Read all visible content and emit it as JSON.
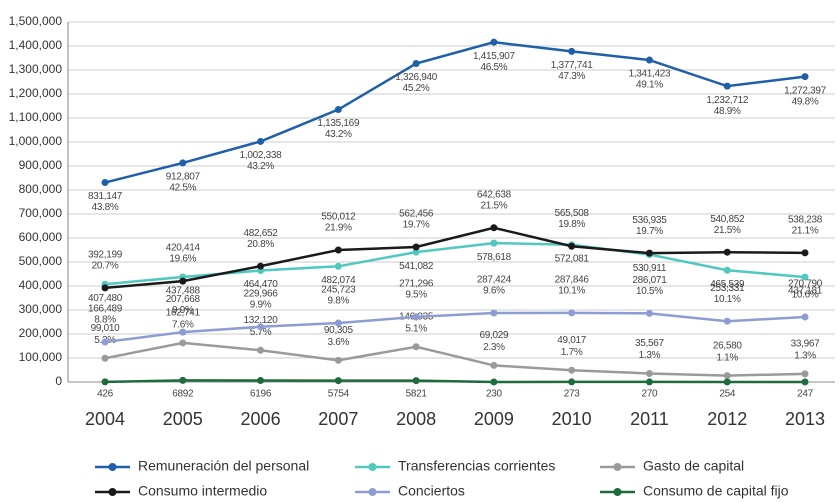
{
  "chart_data": {
    "type": "line",
    "categories": [
      "2004",
      "2005",
      "2006",
      "2007",
      "2008",
      "2009",
      "2010",
      "2011",
      "2012",
      "2013"
    ],
    "ylim": [
      0,
      1500000
    ],
    "yticks": [
      0,
      {
        "value": 100000,
        "label": "100,000"
      },
      {
        "value": 200000,
        "label": "200,000"
      },
      {
        "value": 300000,
        "label": "300,000"
      },
      {
        "value": 400000,
        "label": "400,000"
      },
      {
        "value": 500000,
        "label": "500,000"
      },
      {
        "value": 600000,
        "label": "600,000"
      },
      {
        "value": 700000,
        "label": "700,000"
      },
      {
        "value": 800000,
        "label": "800,000"
      },
      {
        "value": 900000,
        "label": "900,000"
      },
      {
        "value": 1000000,
        "label": "1,000,000"
      },
      {
        "value": 1100000,
        "label": "1,100,000"
      },
      {
        "value": 1200000,
        "label": "1,200,000"
      },
      {
        "value": 1300000,
        "label": "1,300,000"
      },
      {
        "value": 1400000,
        "label": "1,400,000"
      },
      {
        "value": 1500000,
        "label": "1,500,000"
      }
    ],
    "grid": true,
    "legend": "bottom",
    "series": [
      {
        "name": "Remuneración del personal",
        "color": "#1f5ea8",
        "values": [
          831147,
          912807,
          1002338,
          1135169,
          1326940,
          1415907,
          1377741,
          1341423,
          1232712,
          1272397
        ],
        "value_labels": [
          "831,147",
          "912,807",
          "1,002,338",
          "1,135,169",
          "1,326,940",
          "1,415,907",
          "1,377,741",
          "1,341,423",
          "1,232,712",
          "1,272,397"
        ],
        "percent_labels": [
          "43.8%",
          "42.5%",
          "43.2%",
          "43.2%",
          "45.2%",
          "46.5%",
          "47.3%",
          "49.1%",
          "48.9%",
          "49.8%"
        ]
      },
      {
        "name": "Transferencias corrientes",
        "color": "#4fc8c0",
        "values": [
          407480,
          437488,
          464470,
          482074,
          541082,
          578618,
          572081,
          530911,
          465539,
          437181
        ],
        "value_labels": [
          "407,480",
          "437,488",
          "464,470",
          "482,074",
          "541,082",
          "578,618",
          "572,081",
          "530,911",
          "465,539",
          "437,181"
        ]
      },
      {
        "name": "Gasto de capital",
        "color": "#9a9a9a",
        "values": [
          99010,
          162741,
          132120,
          90305,
          146935,
          69029,
          49017,
          35567,
          26580,
          33967
        ],
        "value_labels": [
          "99,010",
          "162,741",
          "132,120",
          "90,305",
          "146,935",
          "69,029",
          "49,017",
          "35,567",
          "26,580",
          "33,967"
        ],
        "percent_labels": [
          "5.2%",
          "7.6%",
          "5.7%",
          "3.6%",
          "5.1%",
          "2.3%",
          "1.7%",
          "1.3%",
          "1.1%",
          "1.3%"
        ]
      },
      {
        "name": "Consumo intermedio",
        "color": "#1a1a1a",
        "values": [
          392199,
          420414,
          482652,
          550012,
          562456,
          642638,
          565508,
          536935,
          540852,
          538238
        ],
        "value_labels": [
          "392,199",
          "420,414",
          "482,652",
          "550,012",
          "562,456",
          "642,638",
          "565,508",
          "536,935",
          "540,852",
          "538,238"
        ],
        "percent_labels": [
          "20.7%",
          "19.6%",
          "20.8%",
          "21.9%",
          "19.7%",
          "21.5%",
          "19.8%",
          "19.7%",
          "21.5%",
          "21.1%"
        ]
      },
      {
        "name": "Conciertos",
        "color": "#8e9cd4",
        "values": [
          166489,
          207668,
          229966,
          245723,
          271296,
          287424,
          287846,
          286071,
          253331,
          270790
        ],
        "value_labels": [
          "166,489",
          "207,668",
          "229,966",
          "245,723",
          "271,296",
          "287,424",
          "287,846",
          "286,071",
          "253,331",
          "270,790"
        ],
        "percent_labels": [
          "8.8%",
          "9.9%",
          "9.9%",
          "9.8%",
          "9.5%",
          "9.6%",
          "10.1%",
          "10.5%",
          "10.1%",
          "10.6%"
        ]
      },
      {
        "name": "Consumo de capital fijo",
        "color": "#1e6b3c",
        "values": [
          426,
          6892,
          6196,
          5754,
          5821,
          230,
          273,
          270,
          254,
          247
        ]
      }
    ]
  }
}
